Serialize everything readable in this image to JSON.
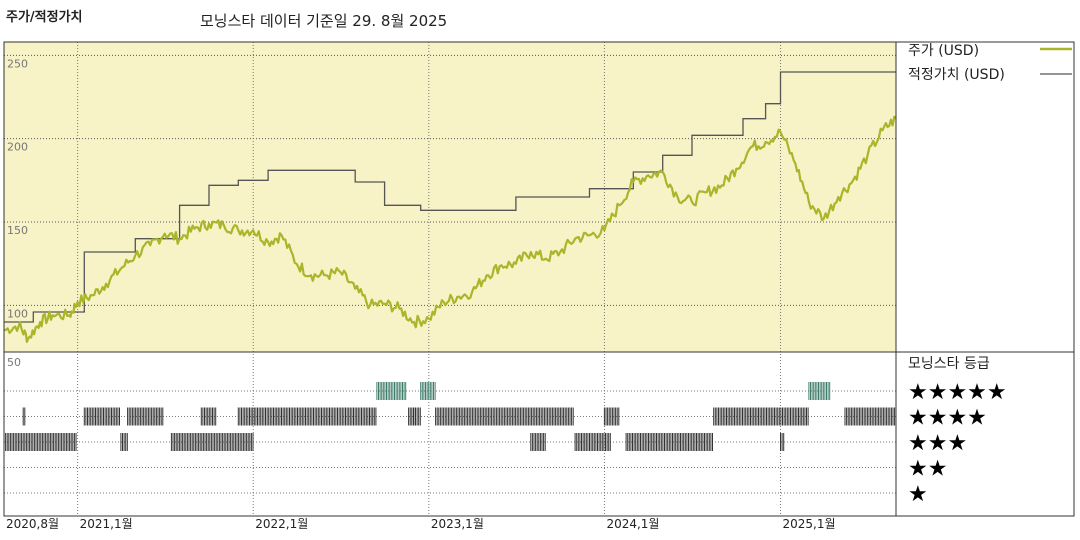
{
  "header": {
    "title": "주가/적정가치",
    "source": "모닝스타 데이터 기준일 29. 8월 2025"
  },
  "legend": {
    "price_label": "주가 (USD)",
    "fair_label": "적정가치 (USD)",
    "rating_title": "모닝스타 등급"
  },
  "colors": {
    "price": "#aab52a",
    "fair": "#555555",
    "band": "#f7f3c6",
    "rating5": "#3e7d6a",
    "rating": "#333333"
  },
  "chart_data": {
    "type": "line",
    "title": "주가/적정가치",
    "ylim": [
      72,
      258
    ],
    "yticks": [
      100,
      150,
      200,
      250
    ],
    "x_range": [
      "2020-08-01",
      "2025-08-29"
    ],
    "x_ticks": [
      {
        "date": "2020-08-01",
        "label": "2020,8월"
      },
      {
        "date": "2021-01-01",
        "label": "2021,1월"
      },
      {
        "date": "2022-01-01",
        "label": "2022,1월"
      },
      {
        "date": "2023-01-01",
        "label": "2023,1월"
      },
      {
        "date": "2024-01-01",
        "label": "2024,1월"
      },
      {
        "date": "2025-01-01",
        "label": "2025,1월"
      }
    ],
    "series": [
      {
        "name": "주가 (USD)",
        "points": [
          [
            "2020-08-01",
            85
          ],
          [
            "2020-09-01",
            88
          ],
          [
            "2020-09-20",
            80
          ],
          [
            "2020-10-15",
            90
          ],
          [
            "2020-11-10",
            94
          ],
          [
            "2020-12-15",
            94
          ],
          [
            "2021-01-01",
            102
          ],
          [
            "2021-02-01",
            106
          ],
          [
            "2021-03-01",
            113
          ],
          [
            "2021-04-01",
            122
          ],
          [
            "2021-05-01",
            130
          ],
          [
            "2021-06-01",
            136
          ],
          [
            "2021-07-01",
            143
          ],
          [
            "2021-08-01",
            140
          ],
          [
            "2021-09-01",
            146
          ],
          [
            "2021-10-01",
            149
          ],
          [
            "2021-11-01",
            148
          ],
          [
            "2021-12-01",
            145
          ],
          [
            "2022-01-01",
            145
          ],
          [
            "2022-02-01",
            138
          ],
          [
            "2022-03-01",
            142
          ],
          [
            "2022-04-01",
            125
          ],
          [
            "2022-05-01",
            118
          ],
          [
            "2022-06-01",
            118
          ],
          [
            "2022-07-01",
            120
          ],
          [
            "2022-08-01",
            110
          ],
          [
            "2022-09-01",
            100
          ],
          [
            "2022-10-01",
            101
          ],
          [
            "2022-11-01",
            98
          ],
          [
            "2022-12-01",
            90
          ],
          [
            "2023-01-01",
            92
          ],
          [
            "2023-02-01",
            102
          ],
          [
            "2023-03-01",
            105
          ],
          [
            "2023-04-01",
            108
          ],
          [
            "2023-05-01",
            118
          ],
          [
            "2023-06-01",
            124
          ],
          [
            "2023-07-01",
            125
          ],
          [
            "2023-08-01",
            132
          ],
          [
            "2023-09-01",
            128
          ],
          [
            "2023-10-01",
            132
          ],
          [
            "2023-11-01",
            140
          ],
          [
            "2023-12-01",
            142
          ],
          [
            "2024-01-01",
            145
          ],
          [
            "2024-02-01",
            160
          ],
          [
            "2024-03-01",
            174
          ],
          [
            "2024-04-01",
            178
          ],
          [
            "2024-05-01",
            180
          ],
          [
            "2024-06-01",
            165
          ],
          [
            "2024-07-01",
            162
          ],
          [
            "2024-08-01",
            168
          ],
          [
            "2024-09-01",
            172
          ],
          [
            "2024-10-01",
            182
          ],
          [
            "2024-11-01",
            195
          ],
          [
            "2024-12-01",
            198
          ],
          [
            "2025-01-01",
            204
          ],
          [
            "2025-02-01",
            185
          ],
          [
            "2025-03-01",
            162
          ],
          [
            "2025-04-01",
            152
          ],
          [
            "2025-05-01",
            165
          ],
          [
            "2025-06-01",
            175
          ],
          [
            "2025-07-01",
            190
          ],
          [
            "2025-08-01",
            205
          ],
          [
            "2025-08-29",
            212
          ]
        ]
      },
      {
        "name": "적정가치 (USD)",
        "step": true,
        "points": [
          [
            "2020-08-01",
            90
          ],
          [
            "2020-10-01",
            96
          ],
          [
            "2021-01-15",
            132
          ],
          [
            "2021-05-01",
            140
          ],
          [
            "2021-08-01",
            160
          ],
          [
            "2021-10-01",
            172
          ],
          [
            "2021-12-01",
            175
          ],
          [
            "2022-02-01",
            181
          ],
          [
            "2022-08-01",
            174
          ],
          [
            "2022-10-01",
            160
          ],
          [
            "2022-12-15",
            157
          ],
          [
            "2023-05-01",
            157
          ],
          [
            "2023-07-01",
            165
          ],
          [
            "2023-12-01",
            170
          ],
          [
            "2024-03-01",
            180
          ],
          [
            "2024-05-01",
            190
          ],
          [
            "2024-07-01",
            202
          ],
          [
            "2024-10-15",
            212
          ],
          [
            "2024-12-01",
            221
          ],
          [
            "2025-01-01",
            240
          ],
          [
            "2025-08-29",
            240
          ]
        ]
      }
    ],
    "star_ratings": {
      "legend": [
        "★★★★★",
        "★★★★",
        "★★★",
        "★★",
        "★"
      ],
      "periods": [
        {
          "from": "2020-08-01",
          "to": "2020-12-31",
          "stars": 3
        },
        {
          "from": "2020-09-10",
          "to": "2020-09-14",
          "stars": 4
        },
        {
          "from": "2021-01-15",
          "to": "2021-03-31",
          "stars": 4
        },
        {
          "from": "2021-04-01",
          "to": "2021-04-15",
          "stars": 3
        },
        {
          "from": "2021-04-15",
          "to": "2021-06-30",
          "stars": 4
        },
        {
          "from": "2021-07-15",
          "to": "2021-11-15",
          "stars": 3
        },
        {
          "from": "2021-09-15",
          "to": "2021-10-15",
          "stars": 4
        },
        {
          "from": "2021-11-15",
          "to": "2022-01-01",
          "stars": 3
        },
        {
          "from": "2021-12-01",
          "to": "2022-09-15",
          "stars": 4
        },
        {
          "from": "2022-09-15",
          "to": "2022-11-15",
          "stars": 5
        },
        {
          "from": "2022-11-20",
          "to": "2022-11-30",
          "stars": 4
        },
        {
          "from": "2022-12-01",
          "to": "2022-12-15",
          "stars": 4
        },
        {
          "from": "2022-12-15",
          "to": "2023-01-15",
          "stars": 5
        },
        {
          "from": "2023-01-15",
          "to": "2023-10-31",
          "stars": 4
        },
        {
          "from": "2023-08-01",
          "to": "2023-08-31",
          "stars": 3
        },
        {
          "from": "2023-11-01",
          "to": "2024-01-15",
          "stars": 3
        },
        {
          "from": "2024-01-01",
          "to": "2024-02-01",
          "stars": 4
        },
        {
          "from": "2024-02-15",
          "to": "2024-08-15",
          "stars": 3
        },
        {
          "from": "2024-08-15",
          "to": "2025-02-28",
          "stars": 4
        },
        {
          "from": "2025-01-01",
          "to": "2025-01-10",
          "stars": 3
        },
        {
          "from": "2025-03-01",
          "to": "2025-04-15",
          "stars": 5
        },
        {
          "from": "2025-05-15",
          "to": "2025-08-29",
          "stars": 4
        }
      ]
    }
  }
}
